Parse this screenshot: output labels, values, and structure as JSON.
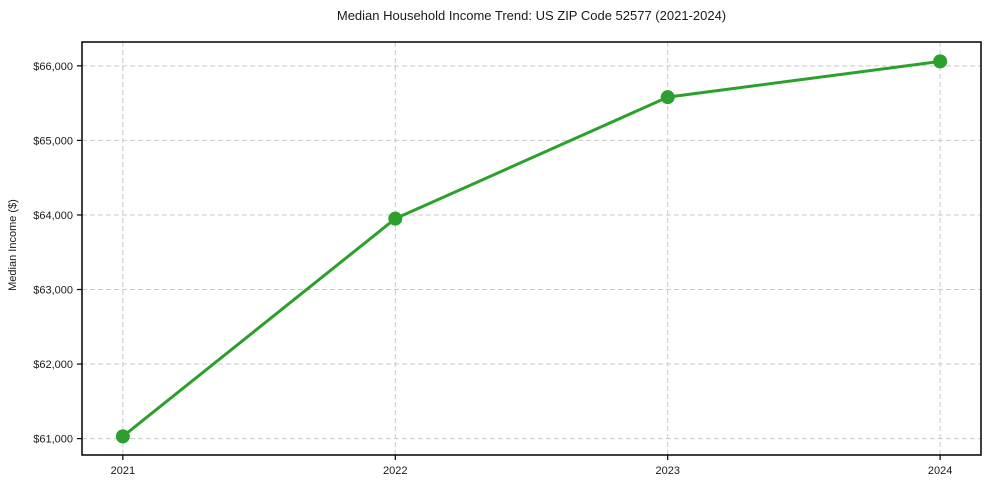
{
  "page": {
    "title": "Median Household Income Trend: US ZIP Code 52577 (2021-2024)"
  },
  "chart_data": {
    "type": "line",
    "title": "Median Household Income Trend: US ZIP Code 52577 (2021-2024)",
    "xlabel": "",
    "ylabel": "Median Income ($)",
    "x": [
      2021,
      2022,
      2023,
      2024
    ],
    "series": [
      {
        "name": "Median Household Income",
        "values": [
          61030,
          63950,
          65580,
          66060
        ]
      }
    ],
    "xticks": [
      2021,
      2022,
      2023,
      2024
    ],
    "xtick_labels": [
      "2021",
      "2022",
      "2023",
      "2024"
    ],
    "yticks": [
      61000,
      62000,
      63000,
      64000,
      65000,
      66000
    ],
    "ytick_labels": [
      "$61,000",
      "$62,000",
      "$63,000",
      "$64,000",
      "$65,000",
      "$66,000"
    ],
    "xlim": [
      2020.85,
      2024.15
    ],
    "ylim": [
      60780,
      66320
    ],
    "grid": true,
    "legend": "none",
    "colors": {
      "line": "#2ca02c",
      "marker": "#2ca02c",
      "grid": "#c9c9c9",
      "spine": "#000000",
      "text": "#1a1a1a",
      "background": "#ffffff"
    }
  }
}
